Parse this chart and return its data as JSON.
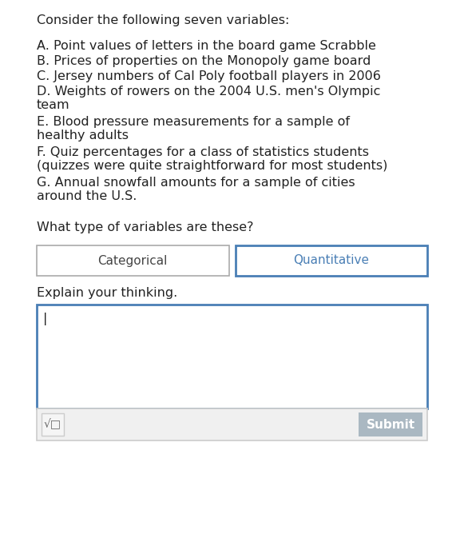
{
  "bg_color": "#ffffff",
  "intro_text": "Consider the following seven variables:",
  "variables": [
    "A. Point values of letters in the board game Scrabble",
    "B. Prices of properties on the Monopoly game board",
    "C. Jersey numbers of Cal Poly football players in 2006",
    "D. Weights of rowers on the 2004 U.S. men's Olympic\nteam",
    "E. Blood pressure measurements for a sample of\nhealthy adults",
    "F. Quiz percentages for a class of statistics students\n(quizzes were quite straightforward for most students)",
    "G. Annual snowfall amounts for a sample of cities\naround the U.S."
  ],
  "question_text": "What type of variables are these?",
  "button_left_label": "Categorical",
  "button_right_label": "Quantitative",
  "button_left_color": "#ffffff",
  "button_left_text_color": "#444444",
  "button_right_color": "#ffffff",
  "button_right_text_color": "#4a7fb5",
  "button_right_border_color": "#4a7fb5",
  "button_left_border_color": "#aaaaaa",
  "explain_label": "Explain your thinking.",
  "text_area_border_color": "#4a7fb5",
  "text_cursor": "|",
  "submit_button_label": "Submit",
  "submit_bg_color": "#aab8c2",
  "submit_text_color": "#ffffff",
  "formula_button_border": "#cccccc",
  "formula_button_bg": "#f5f5f5",
  "toolbar_bg": "#f0f0f0",
  "toolbar_border": "#cccccc",
  "font_size_body": 11.5,
  "font_size_button": 11,
  "text_color": "#222222"
}
